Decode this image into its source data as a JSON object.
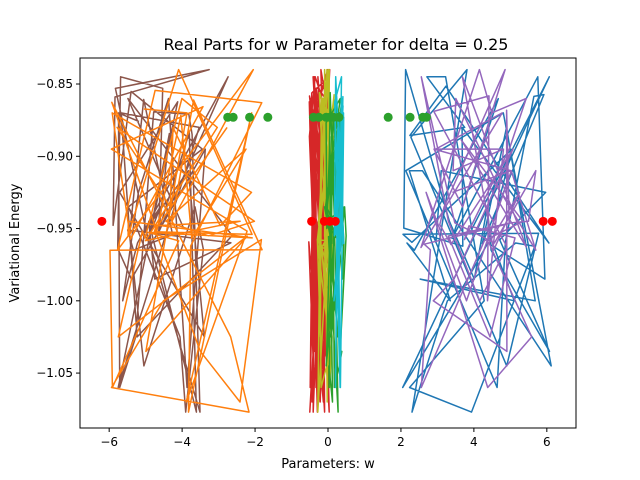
{
  "chart_data": {
    "type": "line",
    "title": "Real Parts for w Parameter for delta = 0.25",
    "xlabel": "Parameters: w",
    "ylabel": "Variational Energy",
    "xlim": [
      -6.8,
      6.8
    ],
    "ylim": [
      -1.088,
      -0.832
    ],
    "xticks": [
      -6,
      -4,
      -2,
      0,
      2,
      4,
      6
    ],
    "xtick_labels": [
      "−6",
      "−4",
      "−2",
      "0",
      "2",
      "4",
      "6"
    ],
    "yticks": [
      -0.85,
      -0.9,
      -0.95,
      -1.0,
      -1.05
    ],
    "ytick_labels": [
      "−0.85",
      "−0.90",
      "−0.95",
      "−1.00",
      "−1.05"
    ],
    "grid": false,
    "legend": "none",
    "y_levels": [
      -1.077,
      -1.07,
      -1.06,
      -1.045,
      -1.035,
      -1.025,
      -1.0,
      -0.985,
      -0.965,
      -0.96,
      -0.955,
      -0.945,
      -0.935,
      -0.925,
      -0.91,
      -0.895,
      -0.88,
      -0.87,
      -0.86,
      -0.845,
      -0.84
    ],
    "series": [
      {
        "color": "#8c564b",
        "x_range": [
          -6.0,
          -2.6
        ],
        "seed": 11,
        "count": 60
      },
      {
        "color": "#ff7f0e",
        "x_range": [
          -6.1,
          -1.8
        ],
        "seed": 23,
        "count": 60
      },
      {
        "color": "#d62728",
        "x_range": [
          -0.55,
          0.05
        ],
        "seed": 37,
        "count": 80
      },
      {
        "color": "#bcbd22",
        "x_range": [
          -0.3,
          0.2
        ],
        "seed": 41,
        "count": 50
      },
      {
        "color": "#2ca02c",
        "x_range": [
          -0.1,
          0.5
        ],
        "seed": 53,
        "count": 50
      },
      {
        "color": "#17becf",
        "x_range": [
          0.15,
          0.45
        ],
        "seed": 61,
        "count": 30
      },
      {
        "color": "#1f77b4",
        "x_range": [
          1.8,
          6.2
        ],
        "seed": 71,
        "count": 60
      },
      {
        "color": "#9467bd",
        "x_range": [
          2.5,
          5.9
        ],
        "seed": 83,
        "count": 60
      }
    ],
    "markers": [
      {
        "name": "",
        "color": "#2ca02c",
        "y": -0.873,
        "x": [
          -2.75,
          -2.6,
          -2.15,
          -1.65,
          -0.4,
          -0.25,
          -0.05,
          0.05,
          0.15,
          0.3,
          1.65,
          2.25,
          2.6,
          2.7
        ]
      },
      {
        "name": "",
        "color": "#ff0000",
        "y": -0.945,
        "x": [
          -6.2,
          -0.45,
          -0.1,
          0.05,
          0.2,
          5.9,
          6.15
        ]
      }
    ]
  }
}
